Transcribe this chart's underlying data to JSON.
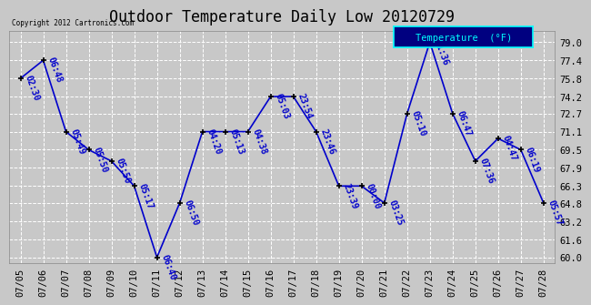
{
  "title": "Outdoor Temperature Daily Low 20120729",
  "copyright": "Copyright 2012 Cartronics.com",
  "legend_label": "Temperature  (°F)",
  "x_labels": [
    "07/05",
    "07/06",
    "07/07",
    "07/08",
    "07/09",
    "07/10",
    "07/11",
    "07/12",
    "07/13",
    "07/14",
    "07/15",
    "07/16",
    "07/17",
    "07/18",
    "07/19",
    "07/20",
    "07/21",
    "07/22",
    "07/23",
    "07/24",
    "07/25",
    "07/26",
    "07/27",
    "07/28"
  ],
  "y_values": [
    75.8,
    77.4,
    71.1,
    69.5,
    68.5,
    66.3,
    60.0,
    64.8,
    71.1,
    71.1,
    71.1,
    74.2,
    74.2,
    71.1,
    66.3,
    66.3,
    64.8,
    72.7,
    79.0,
    72.7,
    68.5,
    70.5,
    69.5,
    64.8
  ],
  "time_labels": [
    "02:30",
    "06:48",
    "05:49",
    "05:50",
    "05:50",
    "05:17",
    "06:40",
    "06:50",
    "04:20",
    "05:13",
    "04:38",
    "05:03",
    "23:54",
    "23:46",
    "23:39",
    "00:00",
    "03:25",
    "05:10",
    "01:36",
    "06:47",
    "07:36",
    "04:47",
    "06:19",
    "05:57"
  ],
  "line_color": "#0000cc",
  "marker_color": "#000000",
  "bg_color": "#c8c8c8",
  "plot_bg_color": "#c8c8c8",
  "grid_color": "#ffffff",
  "y_ticks": [
    60.0,
    61.6,
    63.2,
    64.8,
    66.3,
    67.9,
    69.5,
    71.1,
    72.7,
    74.2,
    75.8,
    77.4,
    79.0
  ],
  "ylim": [
    59.5,
    80.0
  ],
  "title_fontsize": 12,
  "label_fontsize": 7,
  "tick_fontsize": 7.5,
  "legend_bg_color": "#000080",
  "legend_text_color": "#00ffff"
}
